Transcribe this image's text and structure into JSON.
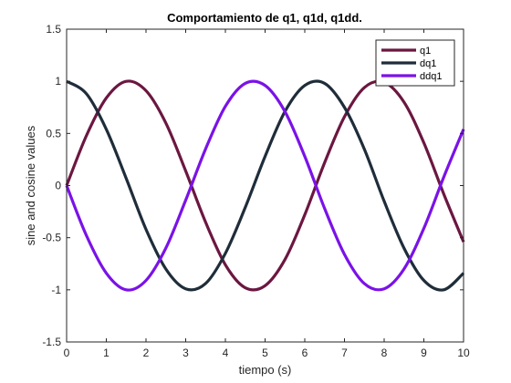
{
  "chart_data": {
    "type": "line",
    "title": "Comportamiento de q1, q1d, q1dd.",
    "xlabel": "tiempo (s)",
    "ylabel": "sine and cosine values",
    "xlim": [
      0,
      10
    ],
    "ylim": [
      -1.5,
      1.5
    ],
    "xticks": [
      0,
      1,
      2,
      3,
      4,
      5,
      6,
      7,
      8,
      9,
      10
    ],
    "yticks": [
      -1.5,
      -1,
      -0.5,
      0,
      0.5,
      1,
      1.5
    ],
    "xtick_labels": [
      "0",
      "1",
      "2",
      "3",
      "4",
      "5",
      "6",
      "7",
      "8",
      "9",
      "10"
    ],
    "ytick_labels": [
      "-1.5",
      "-1",
      "-0.5",
      "0",
      "0.5",
      "1",
      "1.5"
    ],
    "grid": false,
    "legend_position": "top-right",
    "x": [
      0,
      0.5,
      1,
      1.5,
      2,
      2.5,
      3,
      3.5,
      4,
      4.5,
      5,
      5.5,
      6,
      6.5,
      7,
      7.5,
      8,
      8.5,
      9,
      9.5,
      10
    ],
    "series": [
      {
        "name": "q1",
        "color": "#6b1740",
        "values": [
          0,
          0.48,
          0.84,
          1.0,
          0.91,
          0.6,
          0.14,
          -0.35,
          -0.76,
          -0.98,
          -0.96,
          -0.71,
          -0.28,
          0.22,
          0.66,
          0.94,
          0.99,
          0.8,
          0.41,
          -0.08,
          -0.54
        ]
      },
      {
        "name": "dq1",
        "color": "#1f2d3a",
        "values": [
          1.0,
          0.88,
          0.54,
          0.07,
          -0.42,
          -0.8,
          -0.99,
          -0.94,
          -0.65,
          -0.21,
          0.28,
          0.71,
          0.96,
          0.98,
          0.75,
          0.35,
          -0.15,
          -0.6,
          -0.91,
          -1.0,
          -0.84
        ]
      },
      {
        "name": "ddq1",
        "color": "#7a12e8",
        "values": [
          0,
          -0.48,
          -0.84,
          -1.0,
          -0.91,
          -0.6,
          -0.14,
          0.35,
          0.76,
          0.98,
          0.96,
          0.71,
          0.28,
          -0.22,
          -0.66,
          -0.94,
          -0.99,
          -0.8,
          -0.41,
          0.08,
          0.54
        ]
      }
    ]
  }
}
